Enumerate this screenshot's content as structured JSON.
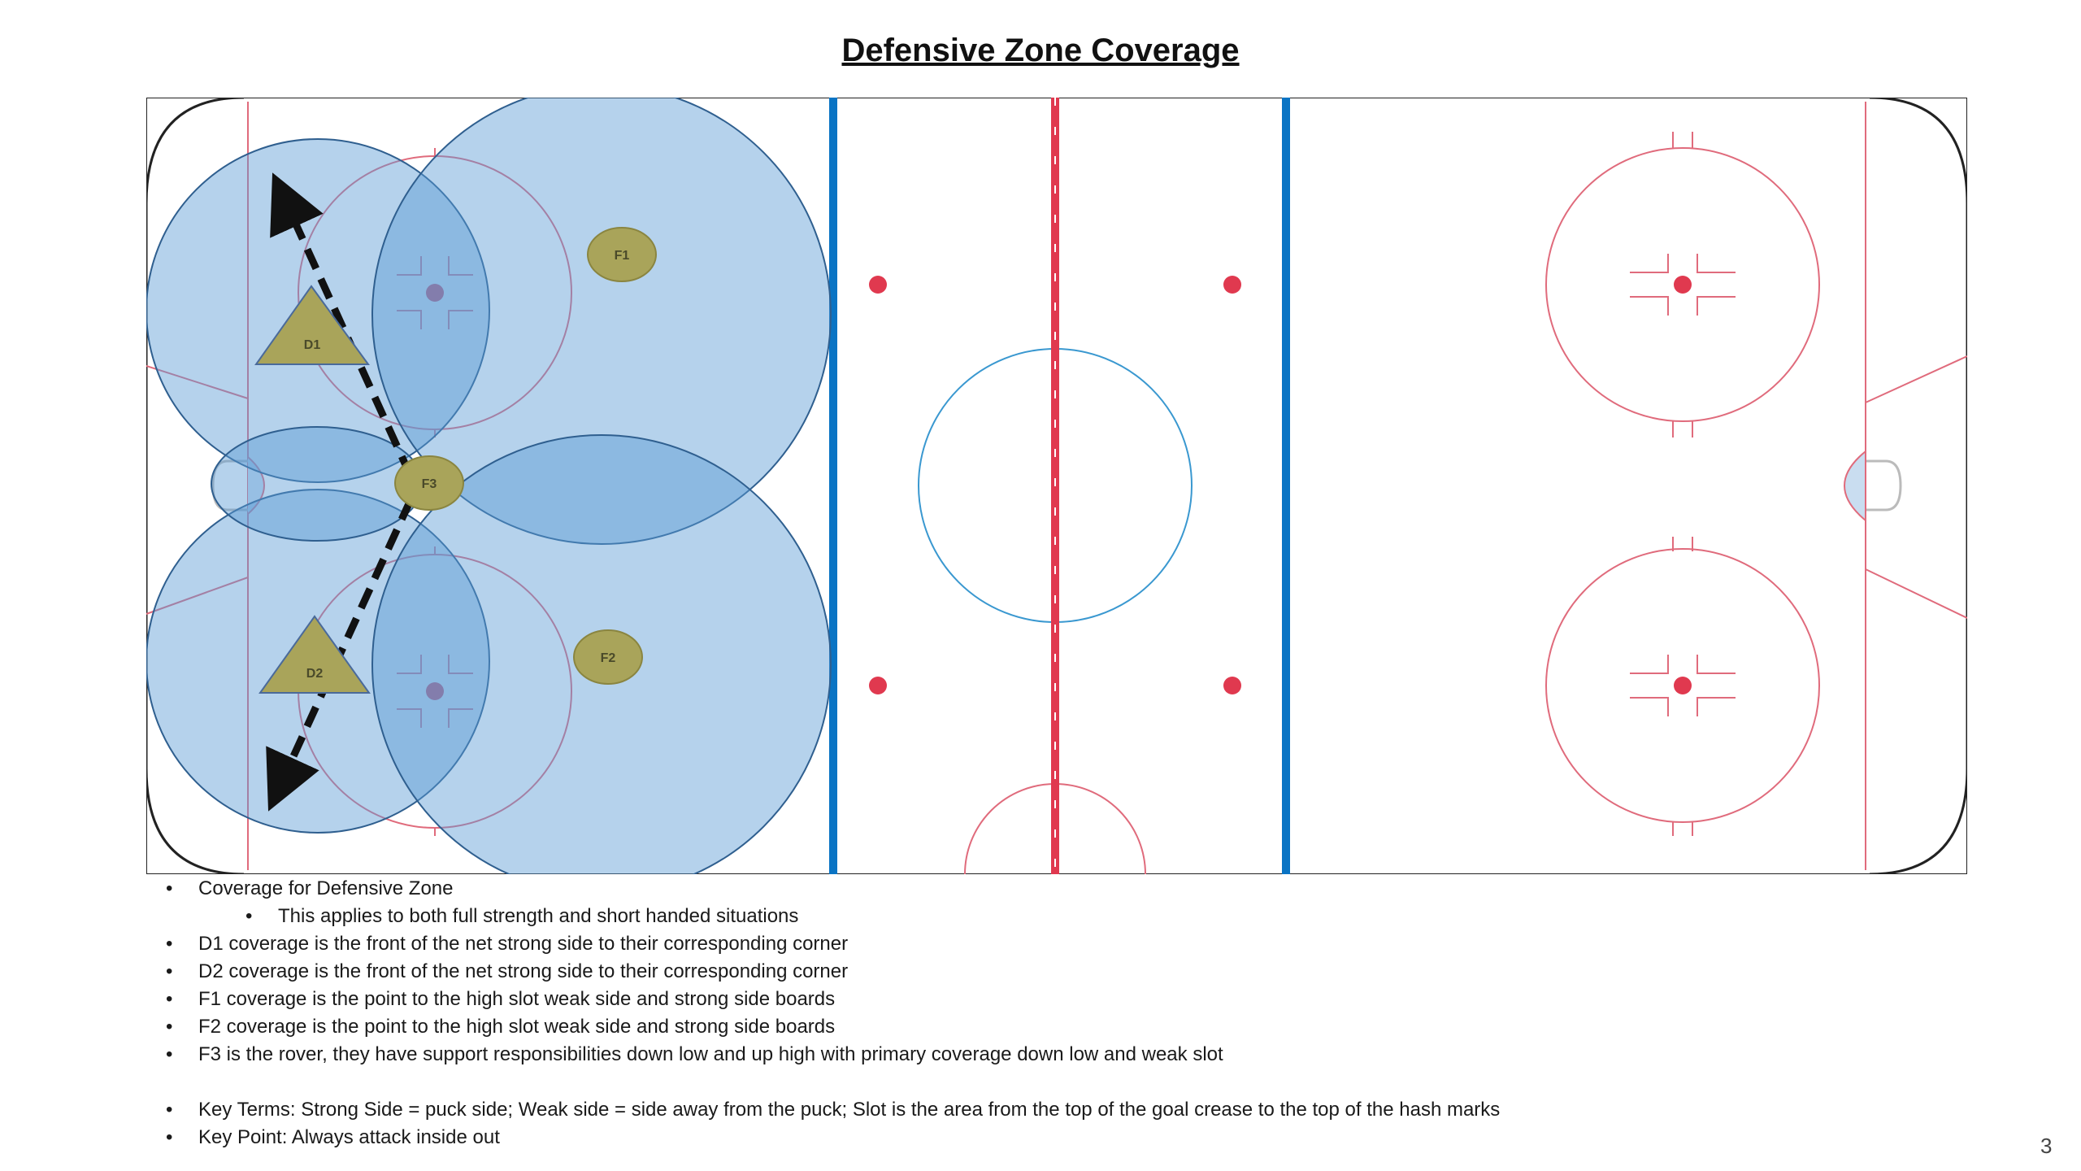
{
  "title": "Defensive Zone Coverage",
  "players": {
    "d1": "D1",
    "d2": "D2",
    "f1": "F1",
    "f2": "F2",
    "f3": "F3"
  },
  "notes": [
    {
      "text": "Coverage for Defensive Zone",
      "level": 1
    },
    {
      "text": "This applies to both full strength and short handed situations",
      "level": 2
    },
    {
      "text": "D1 coverage is the front of the net strong side to their corresponding corner",
      "level": 1
    },
    {
      "text": "D2 coverage is the front of the net strong side to their corresponding corner",
      "level": 1
    },
    {
      "text": "F1 coverage is the point to the high slot weak side and strong side boards",
      "level": 1
    },
    {
      "text": "F2 coverage is the point to the high slot weak side and strong side boards",
      "level": 1
    },
    {
      "text": "F3 is the rover, they have support responsibilities down low and up high with primary coverage down low and weak slot",
      "level": 1
    },
    {
      "text": "Key Terms:  Strong Side = puck side; Weak side = side away from the puck; Slot is the area from the top of the goal crease to the top of the hash marks",
      "level": 1
    },
    {
      "text": "Key Point:  Always attack inside out",
      "level": 1
    }
  ],
  "page_number": "3",
  "colors": {
    "coverage_fill": "#5b9bd5",
    "coverage_stroke": "#2f5f8f",
    "player_fill": "#a9a45a",
    "red_line": "#e0394f",
    "blue_line": "#0a74c4",
    "faceoff_circle": "#e06b7c",
    "center_circle": "#3a98d0"
  }
}
